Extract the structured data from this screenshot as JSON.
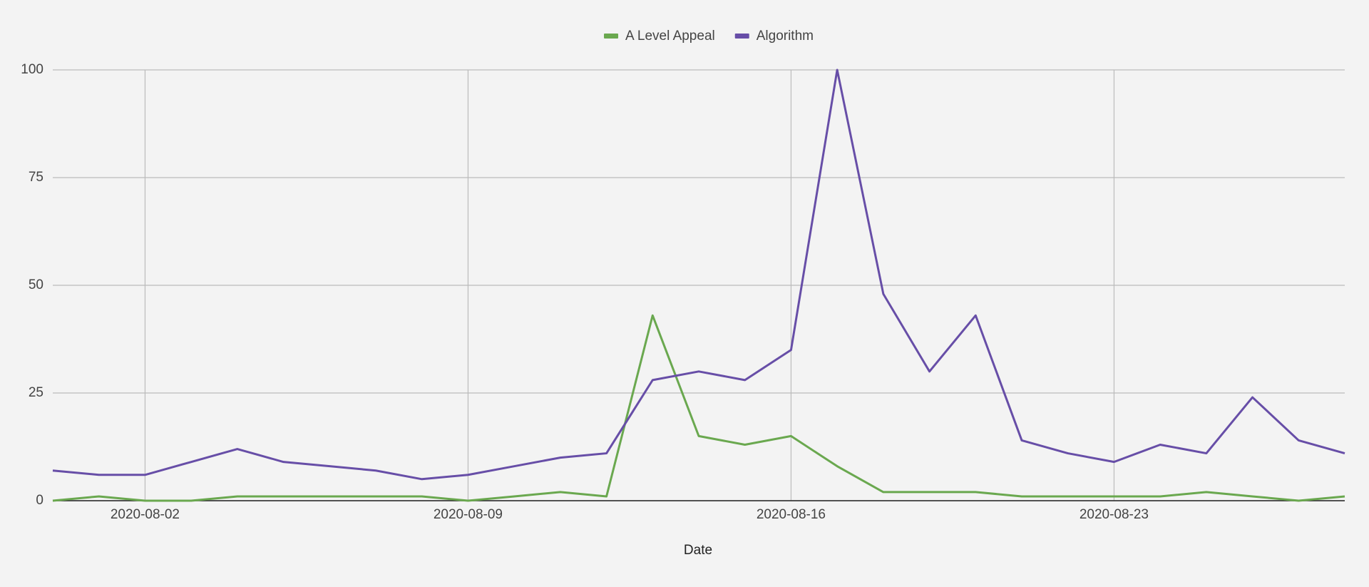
{
  "chart_data": {
    "type": "line",
    "x_label": "Date",
    "x": [
      "2020-07-31",
      "2020-08-01",
      "2020-08-02",
      "2020-08-03",
      "2020-08-04",
      "2020-08-05",
      "2020-08-06",
      "2020-08-07",
      "2020-08-08",
      "2020-08-09",
      "2020-08-10",
      "2020-08-11",
      "2020-08-12",
      "2020-08-13",
      "2020-08-14",
      "2020-08-15",
      "2020-08-16",
      "2020-08-17",
      "2020-08-18",
      "2020-08-19",
      "2020-08-20",
      "2020-08-21",
      "2020-08-22",
      "2020-08-23",
      "2020-08-24",
      "2020-08-25",
      "2020-08-26",
      "2020-08-27",
      "2020-08-28"
    ],
    "series": [
      {
        "name": "A Level Appeal",
        "color": "#6aa84f",
        "values": [
          0,
          1,
          0,
          0,
          1,
          1,
          1,
          1,
          1,
          0,
          1,
          2,
          1,
          43,
          15,
          13,
          15,
          8,
          2,
          2,
          2,
          1,
          1,
          1,
          1,
          2,
          1,
          0,
          1
        ]
      },
      {
        "name": "Algorithm",
        "color": "#674ea7",
        "values": [
          7,
          6,
          6,
          9,
          12,
          9,
          8,
          7,
          5,
          6,
          8,
          10,
          11,
          28,
          30,
          28,
          35,
          100,
          48,
          30,
          43,
          14,
          11,
          9,
          13,
          11,
          24,
          14,
          11
        ]
      }
    ],
    "xlim": [
      "2020-07-31",
      "2020-08-28"
    ],
    "xticks": [
      "2020-08-02",
      "2020-08-09",
      "2020-08-16",
      "2020-08-23"
    ],
    "ylim": [
      0,
      100
    ],
    "yticks": [
      0,
      25,
      50,
      75,
      100
    ],
    "grid": true,
    "legend": "top"
  }
}
